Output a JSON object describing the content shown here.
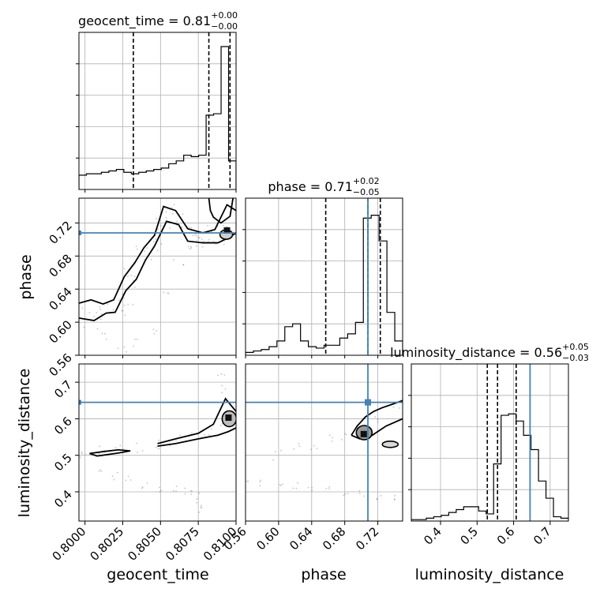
{
  "chart_data": {
    "type": "corner",
    "parameters": [
      "geocent_time",
      "phase",
      "luminosity_distance"
    ],
    "axis_labels": [
      "geocent_time",
      "phase",
      "luminosity_distance"
    ],
    "ranges": {
      "geocent_time": [
        0.7996,
        0.81
      ],
      "phase": [
        0.56,
        0.75
      ],
      "luminosity_distance": [
        0.32,
        0.75
      ]
    },
    "ticks": {
      "geocent_time": {
        "values": [
          0.8,
          0.8025,
          0.805,
          0.8075,
          0.81
        ],
        "labels": [
          "0.8000",
          "0.8025",
          "0.8050",
          "0.8075",
          "0.8100"
        ]
      },
      "phase": {
        "values": [
          0.56,
          0.6,
          0.64,
          0.68,
          0.72
        ],
        "labels": [
          "0.56",
          "0.60",
          "0.64",
          "0.68",
          "0.72"
        ]
      },
      "luminosity_distance": {
        "values": [
          0.4,
          0.5,
          0.6,
          0.7
        ],
        "labels": [
          "0.4",
          "0.5",
          "0.6",
          "0.7"
        ]
      }
    },
    "truths": {
      "geocent_time": null,
      "phase": 0.708,
      "luminosity_distance": 0.645
    },
    "truth_color": "#4682b4",
    "quantiles": {
      "geocent_time": [
        0.8032,
        0.8082,
        0.8096
      ],
      "phase": [
        0.657,
        0.708,
        0.723
      ],
      "luminosity_distance": [
        0.528,
        0.556,
        0.607
      ]
    },
    "titles": [
      {
        "param": "geocent_time",
        "base": "geocent_time = 0.81",
        "plus": "+0.00",
        "minus": "−0.00"
      },
      {
        "param": "phase",
        "base": "phase = 0.71",
        "plus": "+0.02",
        "minus": "−0.05"
      },
      {
        "param": "luminosity_distance",
        "base": "luminosity_distance = 0.56",
        "plus": "+0.05",
        "minus": "−0.03"
      }
    ],
    "histograms": {
      "geocent_time": [
        0.1,
        0.11,
        0.11,
        0.12,
        0.13,
        0.14,
        0.12,
        0.11,
        0.12,
        0.13,
        0.14,
        0.15,
        0.18,
        0.2,
        0.24,
        0.23,
        0.24,
        0.52,
        0.53,
        1.0,
        0.2
      ],
      "phase": [
        0.02,
        0.03,
        0.04,
        0.06,
        0.1,
        0.2,
        0.22,
        0.1,
        0.06,
        0.05,
        0.07,
        0.07,
        0.12,
        0.15,
        0.23,
        0.96,
        0.98,
        0.8,
        0.3,
        0.1
      ],
      "luminosity_distance": [
        0.01,
        0.01,
        0.02,
        0.03,
        0.04,
        0.06,
        0.08,
        0.1,
        0.1,
        0.07,
        0.05,
        0.4,
        0.74,
        0.75,
        0.7,
        0.6,
        0.5,
        0.28,
        0.16,
        0.03,
        0.02
      ]
    },
    "grid": true,
    "colors": {
      "contour": "#000000",
      "grid": "#b0b0b0",
      "truth": "#4682b4"
    }
  }
}
